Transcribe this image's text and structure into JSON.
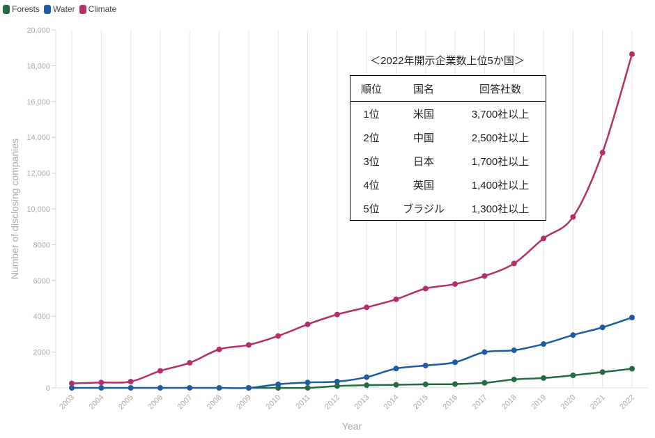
{
  "chart_data": {
    "type": "line",
    "xlabel": "Year",
    "ylabel": "Number of disclosing companies",
    "ylim": [
      0,
      20000
    ],
    "grid": "vertical",
    "legend": "top-left",
    "categories": [
      "2003",
      "2004",
      "2005",
      "2006",
      "2007",
      "2008",
      "2009",
      "2010",
      "2011",
      "2012",
      "2013",
      "2014",
      "2015",
      "2016",
      "2017",
      "2018",
      "2019",
      "2020",
      "2021",
      "2022"
    ],
    "yticks": [
      "0",
      "2000",
      "4000",
      "6000",
      "8000",
      "10,000",
      "12,000",
      "14,000",
      "16,000",
      "18,000",
      "20,000"
    ],
    "series": [
      {
        "name": "Forests",
        "color": "#236b43",
        "values": [
          null,
          null,
          null,
          null,
          null,
          null,
          0,
          0,
          0,
          100,
          150,
          170,
          200,
          210,
          280,
          470,
          550,
          700,
          880,
          1070
        ]
      },
      {
        "name": "Water",
        "color": "#1b5ca3",
        "values": [
          0,
          0,
          0,
          0,
          0,
          0,
          0,
          200,
          300,
          350,
          600,
          1080,
          1250,
          1430,
          2000,
          2100,
          2450,
          2950,
          3380,
          3930
        ]
      },
      {
        "name": "Climate",
        "color": "#b52d69",
        "values": [
          250,
          300,
          350,
          950,
          1400,
          2150,
          2400,
          2900,
          3550,
          4100,
          4500,
          4950,
          5550,
          5800,
          6250,
          6950,
          8350,
          9550,
          13150,
          18650
        ]
      }
    ]
  },
  "table": {
    "title": "＜2022年開示企業数上位5か国＞",
    "headers": [
      "順位",
      "国名",
      "回答社数"
    ],
    "rows": [
      [
        "1位",
        "米国",
        "3,700社以上"
      ],
      [
        "2位",
        "中国",
        "2,500社以上"
      ],
      [
        "3位",
        "日本",
        "1,700社以上"
      ],
      [
        "4位",
        "英国",
        "1,400社以上"
      ],
      [
        "5位",
        "ブラジル",
        "1,300社以上"
      ]
    ]
  }
}
